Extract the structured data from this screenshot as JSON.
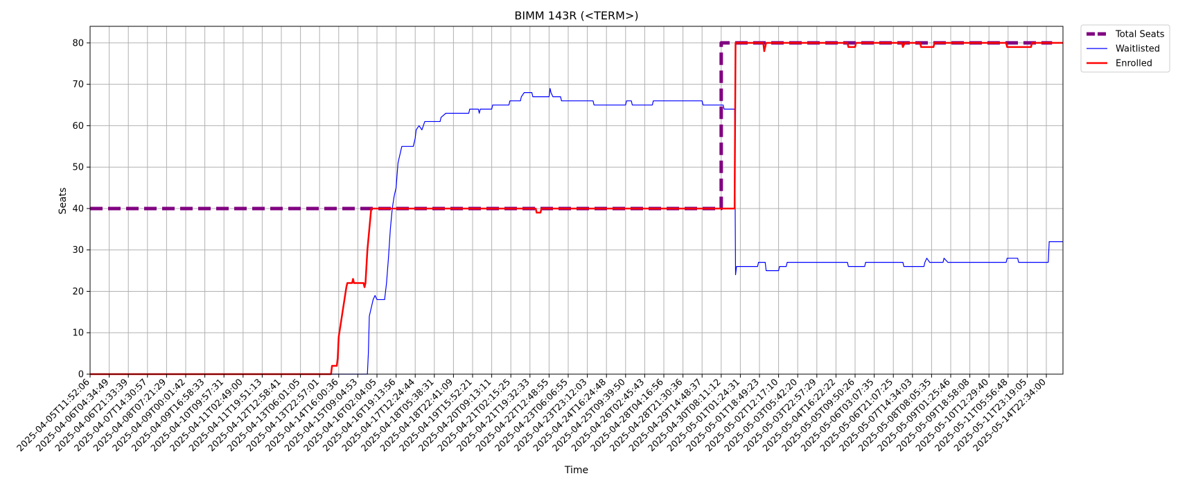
{
  "chart_data": {
    "type": "line",
    "title": "BIMM 143R (<TERM>)",
    "xlabel": "Time",
    "ylabel": "Seats",
    "ylim": [
      0,
      84
    ],
    "yticks": [
      0,
      10,
      20,
      30,
      40,
      50,
      60,
      70,
      80
    ],
    "grid": true,
    "legend_position": "outside-top-right",
    "x_ticks": [
      "2025-04-05T11:52:06",
      "2025-04-06T04:34:49",
      "2025-04-06T21:33:39",
      "2025-04-07T14:30:57",
      "2025-04-08T07:21:29",
      "2025-04-09T00:01:42",
      "2025-04-09T16:58:33",
      "2025-04-10T09:57:31",
      "2025-04-11T02:49:00",
      "2025-04-11T19:51:13",
      "2025-04-12T12:58:41",
      "2025-04-13T06:01:05",
      "2025-04-13T22:57:01",
      "2025-04-14T16:00:36",
      "2025-04-15T09:04:53",
      "2025-04-16T02:04:05",
      "2025-04-16T19:13:56",
      "2025-04-17T12:24:44",
      "2025-04-18T05:38:31",
      "2025-04-18T22:41:09",
      "2025-04-19T15:52:21",
      "2025-04-20T09:13:11",
      "2025-04-21T02:15:25",
      "2025-04-21T19:32:33",
      "2025-04-22T12:48:55",
      "2025-04-23T06:06:55",
      "2025-04-23T23:12:03",
      "2025-04-24T16:24:48",
      "2025-04-25T09:39:50",
      "2025-04-26T02:45:43",
      "2025-04-28T04:16:56",
      "2025-04-28T21:30:36",
      "2025-04-29T14:48:37",
      "2025-04-30T08:11:12",
      "2025-05-01T01:24:31",
      "2025-05-01T18:49:23",
      "2025-05-02T12:17:10",
      "2025-05-03T05:42:20",
      "2025-05-03T22:57:29",
      "2025-05-04T16:22:22",
      "2025-05-05T09:50:26",
      "2025-05-06T03:07:35",
      "2025-05-06T21:07:25",
      "2025-05-07T14:34:03",
      "2025-05-08T08:05:35",
      "2025-05-09T01:25:46",
      "2025-05-09T18:58:08",
      "2025-05-10T12:29:40",
      "2025-05-11T05:56:48",
      "2025-05-11T23:19:05",
      "2025-05-14T22:34:00"
    ],
    "series": [
      {
        "name": "Total Seats",
        "color": "#800080",
        "style": "dashed",
        "points": [
          [
            0,
            40
          ],
          [
            33.0,
            40
          ],
          [
            33.0,
            80
          ],
          [
            50.3,
            80
          ]
        ]
      },
      {
        "name": "Waitlisted",
        "color": "#0000ff",
        "style": "solid",
        "points": [
          [
            0,
            0
          ],
          [
            14.3,
            0
          ],
          [
            14.5,
            0
          ],
          [
            14.55,
            5
          ],
          [
            14.6,
            14
          ],
          [
            14.7,
            16
          ],
          [
            14.8,
            18
          ],
          [
            14.9,
            19
          ],
          [
            15.0,
            18
          ],
          [
            15.4,
            18
          ],
          [
            15.5,
            22
          ],
          [
            15.6,
            28
          ],
          [
            15.7,
            35
          ],
          [
            15.8,
            40
          ],
          [
            15.9,
            43
          ],
          [
            16.0,
            45
          ],
          [
            16.1,
            51
          ],
          [
            16.2,
            53
          ],
          [
            16.3,
            55
          ],
          [
            16.9,
            55
          ],
          [
            17.0,
            57
          ],
          [
            17.05,
            59
          ],
          [
            17.2,
            60
          ],
          [
            17.35,
            59
          ],
          [
            17.5,
            61
          ],
          [
            18.3,
            61
          ],
          [
            18.35,
            62
          ],
          [
            18.6,
            63
          ],
          [
            19.8,
            63
          ],
          [
            19.85,
            64
          ],
          [
            20.3,
            64
          ],
          [
            20.35,
            63
          ],
          [
            20.4,
            64
          ],
          [
            21.0,
            64
          ],
          [
            21.05,
            65
          ],
          [
            21.9,
            65
          ],
          [
            21.95,
            66
          ],
          [
            22.5,
            66
          ],
          [
            22.55,
            67
          ],
          [
            22.7,
            68
          ],
          [
            23.1,
            68
          ],
          [
            23.15,
            67
          ],
          [
            24.0,
            67
          ],
          [
            24.05,
            69
          ],
          [
            24.1,
            68
          ],
          [
            24.2,
            67
          ],
          [
            24.6,
            67
          ],
          [
            24.65,
            66
          ],
          [
            26.3,
            66
          ],
          [
            26.35,
            65
          ],
          [
            28.0,
            65
          ],
          [
            28.05,
            66
          ],
          [
            28.3,
            66
          ],
          [
            28.35,
            65
          ],
          [
            29.4,
            65
          ],
          [
            29.45,
            66
          ],
          [
            32.0,
            66
          ],
          [
            32.05,
            65
          ],
          [
            33.1,
            65
          ],
          [
            33.15,
            64
          ],
          [
            33.7,
            64
          ],
          [
            33.75,
            24
          ],
          [
            33.8,
            26
          ],
          [
            34.9,
            26
          ],
          [
            34.95,
            27
          ],
          [
            35.3,
            27
          ],
          [
            35.35,
            25
          ],
          [
            36.0,
            25
          ],
          [
            36.05,
            26
          ],
          [
            36.4,
            26
          ],
          [
            36.45,
            27
          ],
          [
            39.6,
            27
          ],
          [
            39.65,
            26
          ],
          [
            40.5,
            26
          ],
          [
            40.55,
            27
          ],
          [
            42.5,
            27
          ],
          [
            42.55,
            26
          ],
          [
            43.6,
            26
          ],
          [
            43.65,
            27
          ],
          [
            43.75,
            28
          ],
          [
            43.9,
            27
          ],
          [
            44.6,
            27
          ],
          [
            44.65,
            28
          ],
          [
            44.85,
            27
          ],
          [
            47.9,
            27
          ],
          [
            47.95,
            28
          ],
          [
            48.5,
            28
          ],
          [
            48.55,
            27
          ],
          [
            50.1,
            27
          ],
          [
            50.15,
            32
          ],
          [
            51.0,
            32
          ]
        ]
      },
      {
        "name": "Enrolled",
        "color": "#ff0000",
        "style": "solid",
        "points": [
          [
            0,
            0
          ],
          [
            12.6,
            0
          ],
          [
            12.65,
            2
          ],
          [
            12.9,
            2
          ],
          [
            12.95,
            4
          ],
          [
            13.0,
            9
          ],
          [
            13.1,
            12
          ],
          [
            13.2,
            15
          ],
          [
            13.3,
            18
          ],
          [
            13.4,
            21
          ],
          [
            13.45,
            22
          ],
          [
            13.7,
            22
          ],
          [
            13.75,
            23
          ],
          [
            13.8,
            22
          ],
          [
            14.3,
            22
          ],
          [
            14.35,
            21
          ],
          [
            14.4,
            22
          ],
          [
            14.5,
            30
          ],
          [
            14.6,
            35
          ],
          [
            14.7,
            40
          ],
          [
            23.3,
            40
          ],
          [
            23.35,
            39
          ],
          [
            23.55,
            39
          ],
          [
            23.6,
            40
          ],
          [
            33.7,
            40
          ],
          [
            33.75,
            80
          ],
          [
            35.2,
            80
          ],
          [
            35.25,
            78
          ],
          [
            35.35,
            80
          ],
          [
            39.6,
            80
          ],
          [
            39.65,
            79
          ],
          [
            40.0,
            79
          ],
          [
            40.05,
            80
          ],
          [
            42.45,
            80
          ],
          [
            42.5,
            79
          ],
          [
            42.6,
            80
          ],
          [
            43.4,
            80
          ],
          [
            43.45,
            79
          ],
          [
            44.1,
            79
          ],
          [
            44.15,
            80
          ],
          [
            47.9,
            80
          ],
          [
            47.95,
            79
          ],
          [
            49.2,
            79
          ],
          [
            49.25,
            80
          ],
          [
            51.0,
            80
          ]
        ]
      }
    ]
  }
}
